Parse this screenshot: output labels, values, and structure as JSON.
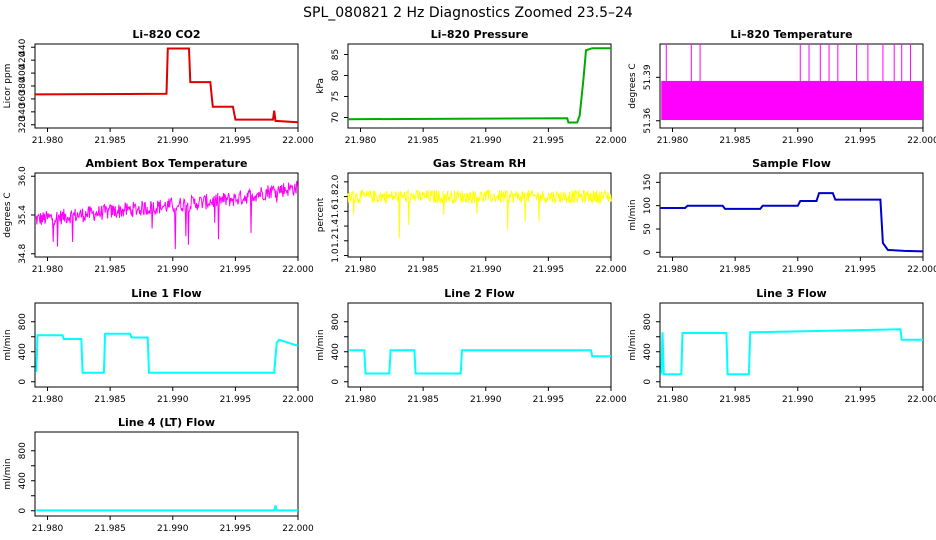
{
  "figure": {
    "title": "SPL_080821  2 Hz Diagnostics Zoomed 23.5–24"
  },
  "chart_data": [
    {
      "id": "co2",
      "type": "line",
      "title": "Li–820 CO2",
      "ylabel": "Licor ppm",
      "color": "#dd0000",
      "xlim": [
        21.979,
        22.0
      ],
      "ylim": [
        315,
        445
      ],
      "xticks": [
        21.98,
        21.985,
        21.99,
        21.995,
        22.0
      ],
      "xtick_labels": [
        "21.980",
        "21.985",
        "21.990",
        "21.995",
        "22.000"
      ],
      "yticks": [
        320,
        340,
        360,
        380,
        400,
        420,
        440
      ],
      "ytick_labels": [
        "320",
        "340",
        "360",
        "380",
        "400",
        "420",
        "440"
      ],
      "x": [
        21.979,
        21.9895,
        21.9896,
        21.9913,
        21.9914,
        21.993,
        21.9932,
        21.9948,
        21.995,
        21.998,
        21.9981,
        21.9982,
        22.0
      ],
      "y": [
        367,
        368,
        438,
        438,
        386,
        386,
        348,
        348,
        328,
        328,
        342,
        326,
        324
      ]
    },
    {
      "id": "pressure",
      "type": "line",
      "title": "Li–820 Pressure",
      "ylabel": "kPa",
      "color": "#00aa00",
      "xlim": [
        21.979,
        22.0
      ],
      "ylim": [
        67.5,
        87.5
      ],
      "xticks": [
        21.98,
        21.985,
        21.99,
        21.995,
        22.0
      ],
      "xtick_labels": [
        "21.980",
        "21.985",
        "21.990",
        "21.995",
        "22.000"
      ],
      "yticks": [
        70,
        75,
        80,
        85
      ],
      "ytick_labels": [
        "70",
        "75",
        "80",
        "85"
      ],
      "x": [
        21.979,
        21.9965,
        21.9966,
        21.9973,
        21.9975,
        21.9978,
        21.998,
        21.9985,
        22.0
      ],
      "y": [
        69.6,
        69.8,
        68.8,
        68.8,
        70.5,
        79.0,
        86.0,
        86.5,
        86.5
      ]
    },
    {
      "id": "temperature",
      "type": "line",
      "title": "Li–820 Temperature",
      "ylabel": "degrees C",
      "color": "#ff00ff",
      "xlim": [
        21.979,
        22.0
      ],
      "ylim": [
        51.355,
        51.413
      ],
      "xticks": [
        21.98,
        21.985,
        21.99,
        21.995,
        22.0
      ],
      "xtick_labels": [
        "21.980",
        "21.985",
        "21.990",
        "21.995",
        "22.000"
      ],
      "yticks": [
        51.36,
        51.39
      ],
      "ytick_labels": [
        "51.36",
        "51.39"
      ],
      "band": [
        51.3605,
        51.3875
      ],
      "spikes_x": [
        21.9795,
        21.9815,
        21.9822,
        21.9902,
        21.9909,
        21.9918,
        21.9925,
        21.9932,
        21.9947,
        21.9956,
        21.9968,
        21.9977,
        21.9983,
        21.999
      ],
      "spike_top": 51.4135
    },
    {
      "id": "ambient",
      "type": "line",
      "title": "Ambient Box Temperature",
      "ylabel": "degrees C",
      "color": "#ff00ff",
      "xlim": [
        21.979,
        22.0
      ],
      "ylim": [
        34.75,
        36.05
      ],
      "xticks": [
        21.98,
        21.985,
        21.99,
        21.995,
        22.0
      ],
      "xtick_labels": [
        "21.980",
        "21.985",
        "21.990",
        "21.995",
        "22.000"
      ],
      "yticks": [
        34.8,
        35.4,
        36.0
      ],
      "ytick_labels": [
        "34.8",
        "35.4",
        "36.0"
      ],
      "x": [
        21.979,
        21.985,
        21.99,
        21.995,
        21.998,
        22.0
      ],
      "y": [
        35.33,
        35.45,
        35.55,
        35.65,
        35.78,
        35.82
      ],
      "noise": 0.12
    },
    {
      "id": "rh",
      "type": "line",
      "title": "Gas Stream RH",
      "ylabel": "percent",
      "color": "#ffff00",
      "xlim": [
        21.979,
        22.0
      ],
      "ylim": [
        0.98,
        2.12
      ],
      "xticks": [
        21.98,
        21.985,
        21.99,
        21.995,
        22.0
      ],
      "xtick_labels": [
        "21.980",
        "21.985",
        "21.990",
        "21.995",
        "22.000"
      ],
      "yticks": [
        1.0,
        1.2,
        1.4,
        1.6,
        1.8,
        2.0
      ],
      "ytick_labels": [
        "1.0",
        "1.2",
        "1.4",
        "1.6",
        "1.8",
        "2.0"
      ],
      "x": [
        21.979,
        22.0
      ],
      "y": [
        1.8,
        1.8
      ],
      "noise": 0.09
    },
    {
      "id": "sample",
      "type": "line",
      "title": "Sample Flow",
      "ylabel": "ml/min",
      "color": "#0000cc",
      "xlim": [
        21.979,
        22.0
      ],
      "ylim": [
        -10,
        170
      ],
      "xticks": [
        21.98,
        21.985,
        21.99,
        21.995,
        22.0
      ],
      "xtick_labels": [
        "21.980",
        "21.985",
        "21.990",
        "21.995",
        "22.000"
      ],
      "yticks": [
        0,
        50,
        100,
        150
      ],
      "ytick_labels": [
        "0",
        "50",
        "100",
        "150"
      ],
      "x": [
        21.979,
        21.981,
        21.9812,
        21.984,
        21.9842,
        21.987,
        21.9872,
        21.99,
        21.9902,
        21.9915,
        21.9917,
        21.9928,
        21.993,
        21.9966,
        21.9968,
        21.9972,
        21.9985,
        22.0
      ],
      "y": [
        95,
        95,
        100,
        100,
        93,
        93,
        100,
        100,
        110,
        110,
        127,
        127,
        113,
        113,
        20,
        5,
        3,
        2
      ]
    },
    {
      "id": "line1",
      "type": "line",
      "title": "Line 1 Flow",
      "ylabel": "ml/min",
      "color": "#00ffff",
      "xlim": [
        21.979,
        22.0
      ],
      "ylim": [
        -70,
        1050
      ],
      "xticks": [
        21.98,
        21.985,
        21.99,
        21.995,
        22.0
      ],
      "xtick_labels": [
        "21.980",
        "21.985",
        "21.990",
        "21.995",
        "22.000"
      ],
      "yticks": [
        0,
        400,
        800
      ],
      "ytick_labels": [
        "0",
        "400",
        "800"
      ],
      "minor_ticks": [
        200,
        600
      ],
      "x": [
        21.9791,
        21.9792,
        21.9812,
        21.9813,
        21.9827,
        21.9828,
        21.9845,
        21.9846,
        21.9866,
        21.9867,
        21.988,
        21.9881,
        21.9981,
        21.9983,
        21.9985,
        22.0
      ],
      "y": [
        130,
        620,
        620,
        570,
        570,
        120,
        120,
        640,
        640,
        590,
        590,
        120,
        120,
        520,
        560,
        480
      ]
    },
    {
      "id": "line2",
      "type": "line",
      "title": "Line 2 Flow",
      "ylabel": "ml/min",
      "color": "#00ffff",
      "xlim": [
        21.979,
        22.0
      ],
      "ylim": [
        -70,
        1050
      ],
      "xticks": [
        21.98,
        21.985,
        21.99,
        21.995,
        22.0
      ],
      "xtick_labels": [
        "21.980",
        "21.985",
        "21.990",
        "21.995",
        "22.000"
      ],
      "yticks": [
        0,
        400,
        800
      ],
      "ytick_labels": [
        "0",
        "400",
        "800"
      ],
      "minor_ticks": [
        200,
        600
      ],
      "x": [
        21.9791,
        21.9803,
        21.9804,
        21.9823,
        21.9824,
        21.9843,
        21.9844,
        21.9861,
        21.9862,
        21.988,
        21.9881,
        21.9984,
        21.9985,
        22.0
      ],
      "y": [
        420,
        420,
        110,
        110,
        420,
        420,
        110,
        110,
        110,
        110,
        420,
        420,
        340,
        340
      ]
    },
    {
      "id": "line3",
      "type": "line",
      "title": "Line 3 Flow",
      "ylabel": "ml/min",
      "color": "#00ffff",
      "xlim": [
        21.979,
        22.0
      ],
      "ylim": [
        -70,
        1050
      ],
      "xticks": [
        21.98,
        21.985,
        21.99,
        21.995,
        22.0
      ],
      "xtick_labels": [
        "21.980",
        "21.985",
        "21.990",
        "21.995",
        "22.000"
      ],
      "yticks": [
        0,
        400,
        800
      ],
      "ytick_labels": [
        "0",
        "400",
        "800"
      ],
      "minor_ticks": [
        200,
        600
      ],
      "x": [
        21.9791,
        21.9792,
        21.9793,
        21.9807,
        21.9808,
        21.9843,
        21.9844,
        21.9861,
        21.9862,
        21.9982,
        21.9983,
        22.0
      ],
      "y": [
        100,
        660,
        100,
        100,
        650,
        650,
        100,
        100,
        660,
        700,
        560,
        560
      ]
    },
    {
      "id": "line4",
      "type": "line",
      "title": "Line 4 (LT) Flow",
      "ylabel": "ml/min",
      "color": "#00ffff",
      "xlim": [
        21.979,
        22.0
      ],
      "ylim": [
        -70,
        1050
      ],
      "xticks": [
        21.98,
        21.985,
        21.99,
        21.995,
        22.0
      ],
      "xtick_labels": [
        "21.980",
        "21.985",
        "21.990",
        "21.995",
        "22.000"
      ],
      "yticks": [
        0,
        400,
        800
      ],
      "ytick_labels": [
        "0",
        "400",
        "800"
      ],
      "minor_ticks": [
        200,
        600
      ],
      "x": [
        21.9791,
        21.9981,
        21.9982,
        21.9983,
        22.0
      ],
      "y": [
        5,
        5,
        70,
        5,
        5
      ]
    }
  ]
}
